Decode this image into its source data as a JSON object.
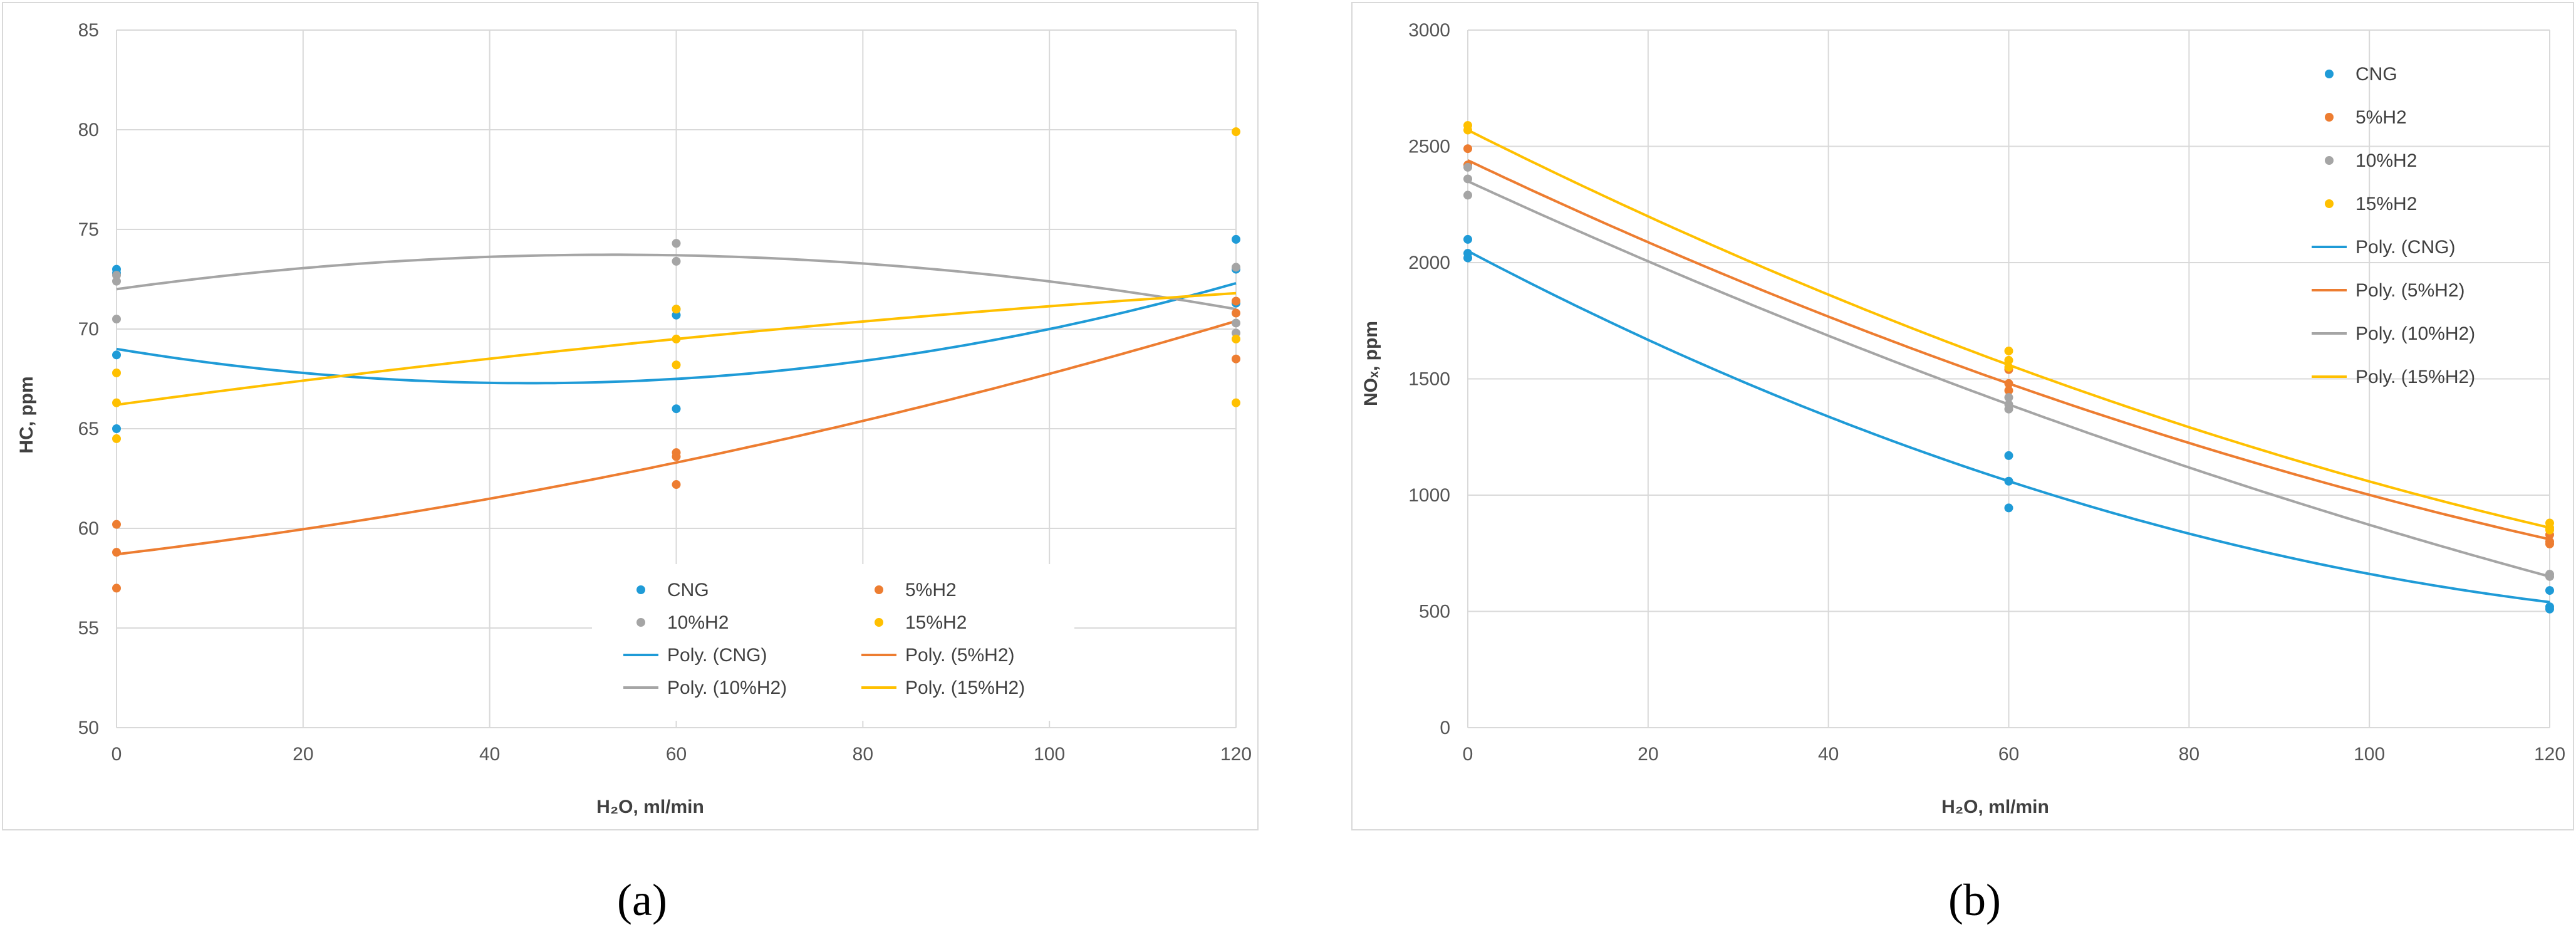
{
  "chart_data": [
    {
      "panel_label": "(a)",
      "type": "scatter",
      "xlabel": "H₂O, ml/min",
      "ylabel": "HC, ppm",
      "xlim": [
        0,
        120
      ],
      "ylim": [
        50,
        85
      ],
      "xticks": [
        0,
        20,
        40,
        60,
        80,
        100,
        120
      ],
      "yticks": [
        50,
        55,
        60,
        65,
        70,
        75,
        80,
        85
      ],
      "grid": true,
      "legend_position": "bottom-center",
      "series": [
        {
          "name": "CNG",
          "color": "#1f9bd7",
          "points": [
            [
              0,
              73
            ],
            [
              0,
              72.8
            ],
            [
              0,
              68.7
            ],
            [
              0,
              65
            ],
            [
              60,
              71
            ],
            [
              60,
              70.7
            ],
            [
              60,
              66
            ],
            [
              120,
              74.5
            ],
            [
              120,
              73
            ],
            [
              120,
              71.3
            ]
          ]
        },
        {
          "name": "5%H2",
          "color": "#ed7d31",
          "points": [
            [
              0,
              60.2
            ],
            [
              0,
              58.8
            ],
            [
              0,
              57
            ],
            [
              60,
              63.8
            ],
            [
              60,
              63.6
            ],
            [
              60,
              62.2
            ],
            [
              120,
              71.4
            ],
            [
              120,
              70.8
            ],
            [
              120,
              68.5
            ]
          ]
        },
        {
          "name": "10%H2",
          "color": "#a5a5a5",
          "points": [
            [
              0,
              72.7
            ],
            [
              0,
              72.4
            ],
            [
              0,
              70.5
            ],
            [
              60,
              74.3
            ],
            [
              60,
              73.4
            ],
            [
              120,
              73.1
            ],
            [
              120,
              70.3
            ],
            [
              120,
              69.8
            ]
          ]
        },
        {
          "name": "15%H2",
          "color": "#ffc000",
          "points": [
            [
              0,
              67.8
            ],
            [
              0,
              66.3
            ],
            [
              0,
              64.5
            ],
            [
              60,
              71
            ],
            [
              60,
              69.5
            ],
            [
              60,
              68.2
            ],
            [
              120,
              79.9
            ],
            [
              120,
              69.5
            ],
            [
              120,
              66.3
            ]
          ]
        }
      ],
      "trendlines": [
        {
          "name": "Poly. (CNG)",
          "color": "#1f9bd7",
          "x": [
            0,
            60,
            120
          ],
          "y": [
            69,
            67.5,
            72.3
          ]
        },
        {
          "name": "Poly. (5%H2)",
          "color": "#ed7d31",
          "x": [
            0,
            60,
            120
          ],
          "y": [
            58.7,
            63.3,
            70.4
          ]
        },
        {
          "name": "Poly. (10%H2)",
          "color": "#a5a5a5",
          "x": [
            0,
            60,
            120
          ],
          "y": [
            72,
            73.7,
            71
          ]
        },
        {
          "name": "Poly. (15%H2)",
          "color": "#ffc000",
          "x": [
            0,
            60,
            120
          ],
          "y": [
            66.2,
            69.5,
            71.8
          ]
        }
      ]
    },
    {
      "panel_label": "(b)",
      "type": "scatter",
      "xlabel": "H₂O, ml/min",
      "ylabel": "NOₓ, ppm",
      "xlim": [
        0,
        120
      ],
      "ylim": [
        0,
        3000
      ],
      "xticks": [
        0,
        20,
        40,
        60,
        80,
        100,
        120
      ],
      "yticks": [
        0,
        500,
        1000,
        1500,
        2000,
        2500,
        3000
      ],
      "grid": true,
      "legend_position": "top-right",
      "series": [
        {
          "name": "CNG",
          "color": "#1f9bd7",
          "points": [
            [
              0,
              2100
            ],
            [
              0,
              2040
            ],
            [
              0,
              2020
            ],
            [
              60,
              1170
            ],
            [
              60,
              1060
            ],
            [
              60,
              945
            ],
            [
              120,
              590
            ],
            [
              120,
              520
            ],
            [
              120,
              510
            ]
          ]
        },
        {
          "name": "5%H2",
          "color": "#ed7d31",
          "points": [
            [
              0,
              2490
            ],
            [
              0,
              2420
            ],
            [
              60,
              1540
            ],
            [
              60,
              1480
            ],
            [
              60,
              1450
            ],
            [
              120,
              830
            ],
            [
              120,
              800
            ],
            [
              120,
              790
            ]
          ]
        },
        {
          "name": "10%H2",
          "color": "#a5a5a5",
          "points": [
            [
              0,
              2410
            ],
            [
              0,
              2360
            ],
            [
              0,
              2290
            ],
            [
              60,
              1420
            ],
            [
              60,
              1390
            ],
            [
              60,
              1370
            ],
            [
              120,
              660
            ],
            [
              120,
              650
            ]
          ]
        },
        {
          "name": "15%H2",
          "color": "#ffc000",
          "points": [
            [
              0,
              2590
            ],
            [
              0,
              2570
            ],
            [
              60,
              1620
            ],
            [
              60,
              1580
            ],
            [
              60,
              1550
            ],
            [
              120,
              880
            ],
            [
              120,
              860
            ],
            [
              120,
              850
            ]
          ]
        }
      ],
      "trendlines": [
        {
          "name": "Poly. (CNG)",
          "color": "#1f9bd7",
          "x": [
            0,
            60,
            120
          ],
          "y": [
            2050,
            1060,
            540
          ]
        },
        {
          "name": "Poly. (5%H2)",
          "color": "#ed7d31",
          "x": [
            0,
            60,
            120
          ],
          "y": [
            2440,
            1480,
            810
          ]
        },
        {
          "name": "Poly. (10%H2)",
          "color": "#a5a5a5",
          "x": [
            0,
            60,
            120
          ],
          "y": [
            2350,
            1390,
            650
          ]
        },
        {
          "name": "Poly. (15%H2)",
          "color": "#ffc000",
          "x": [
            0,
            60,
            120
          ],
          "y": [
            2570,
            1560,
            860
          ]
        }
      ]
    }
  ]
}
